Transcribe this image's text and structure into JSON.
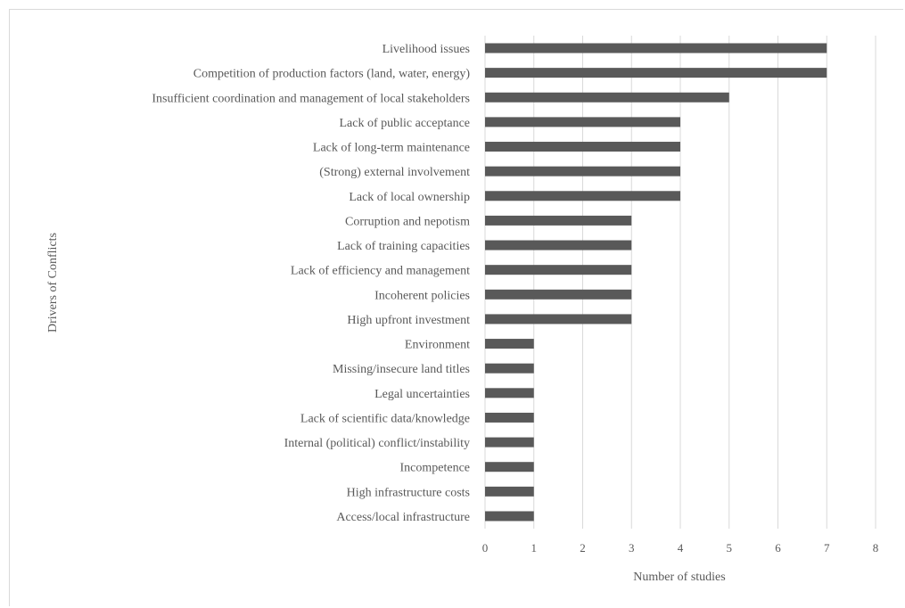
{
  "chart_data": {
    "type": "bar",
    "orientation": "horizontal",
    "title": "",
    "xlabel": "Number of studies",
    "ylabel": "Drivers of Conflicts",
    "xlim": [
      0,
      8
    ],
    "xticks": [
      "0",
      "1",
      "2",
      "3",
      "4",
      "5",
      "6",
      "7",
      "8"
    ],
    "grid": "vertical",
    "legend": "none",
    "bar_color": "#595959",
    "grid_color": "#d9d9d9",
    "categories": [
      "Livelihood issues",
      "Competition of production factors (land, water, energy)",
      "Insufficient coordination and management of local stakeholders",
      "Lack of public acceptance",
      "Lack of long-term maintenance",
      "(Strong) external involvement",
      "Lack of local ownership",
      "Corruption and nepotism",
      "Lack of training capacities",
      "Lack of efficiency and management",
      "Incoherent policies",
      "High upfront investment",
      "Environment",
      "Missing/insecure land titles",
      "Legal uncertainties",
      "Lack of scientific data/knowledge",
      "Internal (political) conflict/instability",
      "Incompetence",
      "High infrastructure costs",
      "Access/local infrastructure"
    ],
    "values": [
      7,
      7,
      5,
      4,
      4,
      4,
      4,
      3,
      3,
      3,
      3,
      3,
      1,
      1,
      1,
      1,
      1,
      1,
      1,
      1
    ]
  }
}
